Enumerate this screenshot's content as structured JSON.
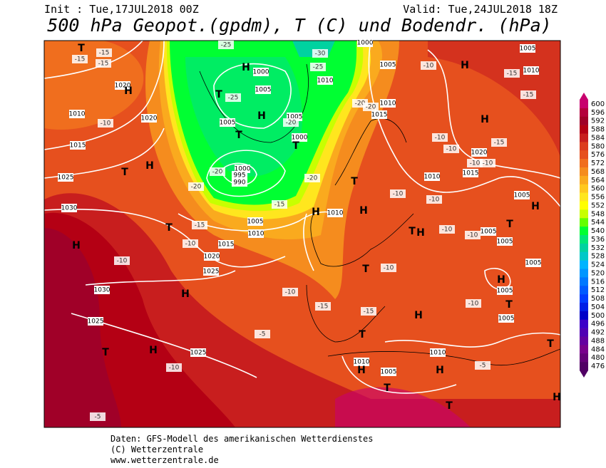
{
  "header": {
    "init": "Init : Tue,17JUL2018 00Z",
    "valid": "Valid: Tue,24JUL2018 18Z",
    "title": "500 hPa Geopot.(gpdm), T (C) und Bodendr. (hPa)"
  },
  "colorbar": {
    "levels": [
      600,
      596,
      592,
      588,
      584,
      580,
      576,
      572,
      568,
      564,
      560,
      556,
      552,
      548,
      544,
      540,
      536,
      532,
      528,
      524,
      520,
      516,
      512,
      508,
      504,
      500,
      496,
      492,
      488,
      484,
      480,
      476
    ],
    "colors": [
      "#c8006e",
      "#b4003c",
      "#a00028",
      "#b40014",
      "#c81e1e",
      "#dc3c1e",
      "#e6501e",
      "#f06e1e",
      "#f58c1e",
      "#faaa1e",
      "#ffc81e",
      "#ffe61e",
      "#ffff00",
      "#c8ff00",
      "#64ff00",
      "#00ff32",
      "#00e678",
      "#00d2a0",
      "#00c8c8",
      "#00b4ff",
      "#0096ff",
      "#0078ff",
      "#005aff",
      "#003cff",
      "#001ee6",
      "#0000c8",
      "#3c00c8",
      "#5000b4",
      "#6400a0",
      "#78008c",
      "#640078",
      "#500064"
    ]
  },
  "map": {
    "pressure_centers": [
      "H",
      "H",
      "T",
      "T",
      "T",
      "H",
      "T",
      "H",
      "H",
      "T",
      "H",
      "T",
      "H",
      "H",
      "H",
      "T",
      "H",
      "H",
      "T",
      "H",
      "T",
      "T",
      "H",
      "T",
      "H",
      "T",
      "H",
      "H",
      "T",
      "T",
      "H",
      "T",
      "T",
      "H"
    ],
    "isobar_labels": [
      "1000",
      "1005",
      "1010",
      "1005",
      "1005",
      "1000",
      "1000",
      "995",
      "990",
      "1010",
      "1015",
      "1005",
      "1010",
      "1020",
      "1010",
      "1020",
      "1015",
      "1025",
      "1030",
      "1005",
      "1010",
      "1010",
      "1015",
      "1020",
      "1025",
      "1030",
      "1025",
      "1025",
      "1010",
      "1015",
      "1020",
      "1005",
      "1005",
      "1005",
      "1005",
      "1005",
      "1005",
      "1010",
      "1010",
      "1005",
      "1000",
      "1005"
    ],
    "temp_labels": [
      "-25",
      "-30",
      "-25",
      "-25",
      "-20",
      "-20",
      "-20",
      "-20",
      "-20",
      "-20",
      "-15",
      "-15",
      "-10",
      "-10",
      "-15",
      "-15",
      "-15",
      "-10",
      "-10",
      "-15",
      "-15",
      "-15",
      "-10",
      "-10",
      "-10",
      "-10",
      "-10",
      "-10",
      "-10",
      "-10",
      "-10",
      "-10",
      "-15",
      "-15",
      "-5",
      "-10",
      "-10",
      "-5",
      "-5"
    ]
  },
  "footer": [
    "Daten: GFS-Modell des amerikanischen Wetterdienstes",
    "(C) Wetterzentrale",
    "www.wetterzentrale.de"
  ]
}
